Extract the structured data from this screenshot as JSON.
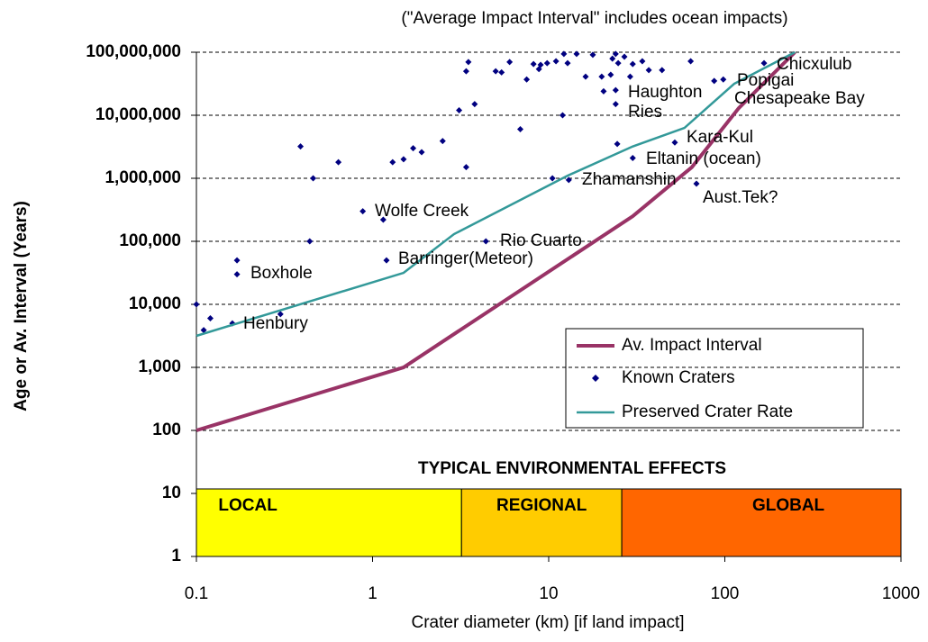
{
  "chart_data": {
    "type": "scatter",
    "subtitle": "(\"Average Impact Interval\" includes ocean impacts)",
    "x_label": "Crater diameter (km) [if land impact]",
    "y_label": "Age or Av. Interval (Years)",
    "log_x": true,
    "log_y": true,
    "grid": true,
    "legend": "lower right",
    "xlim": [
      0.1,
      1000
    ],
    "xticks": [
      0.1,
      1,
      10,
      100,
      1000
    ],
    "ylim": [
      1,
      100000000
    ],
    "yticks": [
      1,
      10,
      100,
      {
        "value": 1000,
        "label": "1,000"
      },
      {
        "value": 10000,
        "label": "10,000"
      },
      {
        "value": 100000,
        "label": "100,000"
      },
      {
        "value": 1000000,
        "label": "1,000,000"
      },
      {
        "value": 10000000,
        "label": "10,000,000"
      },
      {
        "value": 100000000,
        "label": "100,000,000"
      }
    ],
    "series": [
      {
        "name": "Av. Impact Interval",
        "kind": "line",
        "color": "#993366",
        "x": [
          0.1,
          1.5,
          30,
          65,
          120,
          250
        ],
        "values": [
          100,
          1000,
          250000,
          1500000,
          13000000,
          100000000
        ]
      },
      {
        "name": "Known Craters",
        "kind": "marker",
        "color": "#000080",
        "x": [
          0.1,
          0.11,
          0.12,
          0.16,
          0.17,
          0.17,
          0.3,
          0.39,
          0.46,
          0.44,
          0.64,
          0.88,
          1.15,
          1.2,
          1.3,
          1.5,
          1.7,
          1.9,
          2.5,
          3.1,
          3.4,
          3.5,
          3.8,
          3.4,
          4.4,
          5.0,
          5.4,
          6.0,
          6.9,
          7.5,
          8.2,
          8.8,
          9.0,
          9.8,
          10.5,
          11,
          12,
          12.2,
          12.8,
          13,
          14.4,
          16.2,
          17.8,
          20,
          20.5,
          22.5,
          23,
          24,
          24.8,
          24,
          24,
          24.5,
          26.9,
          29,
          30,
          34,
          37,
          44,
          52,
          30,
          64,
          69,
          87,
          98,
          167
        ],
        "values": [
          10000,
          3900,
          6000,
          5000,
          50000,
          30000,
          7000,
          3200000,
          1000000,
          100000,
          1800000,
          300000,
          220000,
          50000,
          1800000,
          2000000,
          3000000,
          2600000,
          3900000,
          12000000,
          50000000,
          70000000,
          15000000,
          1500000,
          100000,
          50000000,
          48000000,
          70000000,
          6000000,
          37000000,
          65000000,
          54000000,
          63000000,
          67000000,
          1000000,
          72000000,
          10000000,
          94000000,
          67000000,
          940000,
          94000000,
          41000000,
          91000000,
          41000000,
          24000000,
          44000000,
          79000000,
          94000000,
          67000000,
          25000000,
          15000000,
          3500000,
          85000000,
          41000000,
          65000000,
          72000000,
          52000000,
          52000000,
          3700000,
          2100000,
          72000000,
          820000,
          35000000,
          37000000,
          67000000
        ]
      },
      {
        "name": "Preserved Crater Rate",
        "kind": "line",
        "color": "#339999",
        "x": [
          0.1,
          1.5,
          2.9,
          12.8,
          30,
          59,
          113,
          250
        ],
        "values": [
          3162,
          31600,
          130000,
          1100000,
          3200000,
          6300000,
          31600000,
          100000000
        ]
      }
    ],
    "annotations": [
      "Chicxulub",
      "Popigai",
      "Chesapeake Bay",
      "Haughton",
      "Ries",
      "Kara-Kul",
      "Eltanin (ocean)",
      "Zhamanshin",
      "Aust.Tek?",
      "Wolfe Creek",
      "Rio Cuarto",
      "Barringer(Meteor)",
      "Boxhole",
      "Henbury"
    ],
    "effects": {
      "title": "TYPICAL ENVIRONMENTAL EFFECTS",
      "zones": [
        {
          "label": "LOCAL",
          "from": 0.1,
          "to": 3.2,
          "color": "#ffff00"
        },
        {
          "label": "REGIONAL",
          "from": 3.2,
          "to": 26,
          "color": "#ffcc00"
        },
        {
          "label": "GLOBAL",
          "from": 26,
          "to": 1000,
          "color": "#ff6600"
        }
      ]
    }
  }
}
